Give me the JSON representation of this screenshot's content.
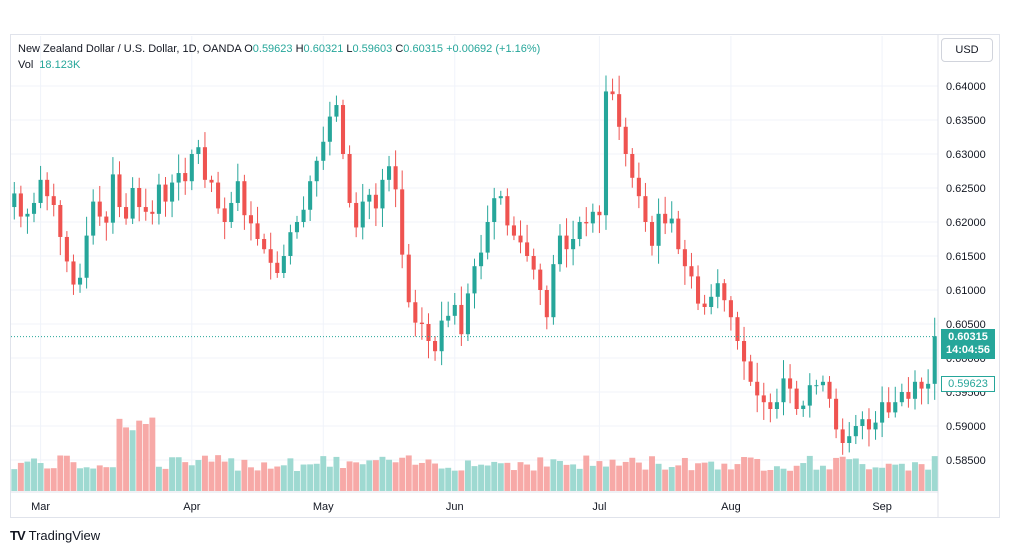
{
  "legend": {
    "symbol": "New Zealand Dollar / U.S. Dollar, 1D, OANDA",
    "o_label": "O",
    "o_value": "0.59623",
    "h_label": "H",
    "h_value": "0.60321",
    "l_label": "L",
    "l_value": "0.59603",
    "c_label": "C",
    "c_value": "0.60315",
    "change": "+0.00692 (+1.16%)"
  },
  "volume": {
    "label": "Vol",
    "value": "18.123K"
  },
  "currency": "USD",
  "last_price": {
    "price": "0.60315",
    "countdown": "14:04:56"
  },
  "open_marker": "0.59623",
  "brand": {
    "logo": "TV",
    "name": "TradingView"
  },
  "colors": {
    "up": "#26a69a",
    "down": "#ef5350",
    "up_vol": "#9ed9d1",
    "down_vol": "#f7a9a7",
    "grid": "#f0f3fa"
  },
  "chart_data": {
    "type": "candlestick",
    "title": "New Zealand Dollar / U.S. Dollar, 1D, OANDA",
    "y_ticks": [
      "0.64000",
      "0.63500",
      "0.63000",
      "0.62500",
      "0.62000",
      "0.61500",
      "0.61000",
      "0.60500",
      "0.60000",
      "0.59500",
      "0.59000",
      "0.58500"
    ],
    "ylim": [
      0.583,
      0.6445
    ],
    "x_tick_labels": [
      "Mar",
      "Apr",
      "May",
      "Jun",
      "Jul",
      "Aug",
      "Sep"
    ],
    "x_tick_index": [
      4,
      27,
      47,
      67,
      89,
      109,
      132
    ],
    "grid": true,
    "ohlc_close_series": [
      0.6242,
      0.6208,
      0.6212,
      0.6228,
      0.6262,
      0.6238,
      0.6225,
      0.6178,
      0.6142,
      0.6108,
      0.6118,
      0.618,
      0.623,
      0.6208,
      0.6199,
      0.627,
      0.6222,
      0.6205,
      0.625,
      0.6222,
      0.6215,
      0.6212,
      0.6255,
      0.623,
      0.6258,
      0.6272,
      0.626,
      0.63,
      0.631,
      0.6262,
      0.6258,
      0.622,
      0.62,
      0.6228,
      0.626,
      0.621,
      0.6198,
      0.6175,
      0.616,
      0.614,
      0.6125,
      0.615,
      0.6185,
      0.62,
      0.6218,
      0.626,
      0.629,
      0.6318,
      0.6355,
      0.6372,
      0.63,
      0.6228,
      0.6192,
      0.623,
      0.624,
      0.622,
      0.6262,
      0.6282,
      0.6248,
      0.6152,
      0.6082,
      0.6052,
      0.605,
      0.6025,
      0.601,
      0.6055,
      0.6062,
      0.6078,
      0.6035,
      0.6095,
      0.6135,
      0.6155,
      0.62,
      0.6235,
      0.6238,
      0.6195,
      0.618,
      0.617,
      0.615,
      0.613,
      0.61,
      0.606,
      0.6138,
      0.618,
      0.616,
      0.6175,
      0.62,
      0.6198,
      0.6215,
      0.621,
      0.6392,
      0.6388,
      0.634,
      0.63,
      0.6265,
      0.6238,
      0.62,
      0.6165,
      0.6212,
      0.6198,
      0.6205,
      0.616,
      0.6135,
      0.612,
      0.608,
      0.6075,
      0.609,
      0.611,
      0.6085,
      0.606,
      0.6025,
      0.5995,
      0.5965,
      0.5945,
      0.5935,
      0.5925,
      0.5935,
      0.597,
      0.5955,
      0.5925,
      0.593,
      0.596,
      0.596,
      0.5965,
      0.594,
      0.5895,
      0.5875,
      0.5885,
      0.59,
      0.591,
      0.5895,
      0.5905,
      0.5935,
      0.592,
      0.5935,
      0.595,
      0.594,
      0.5965,
      0.5955,
      0.5962,
      0.6032
    ]
  }
}
